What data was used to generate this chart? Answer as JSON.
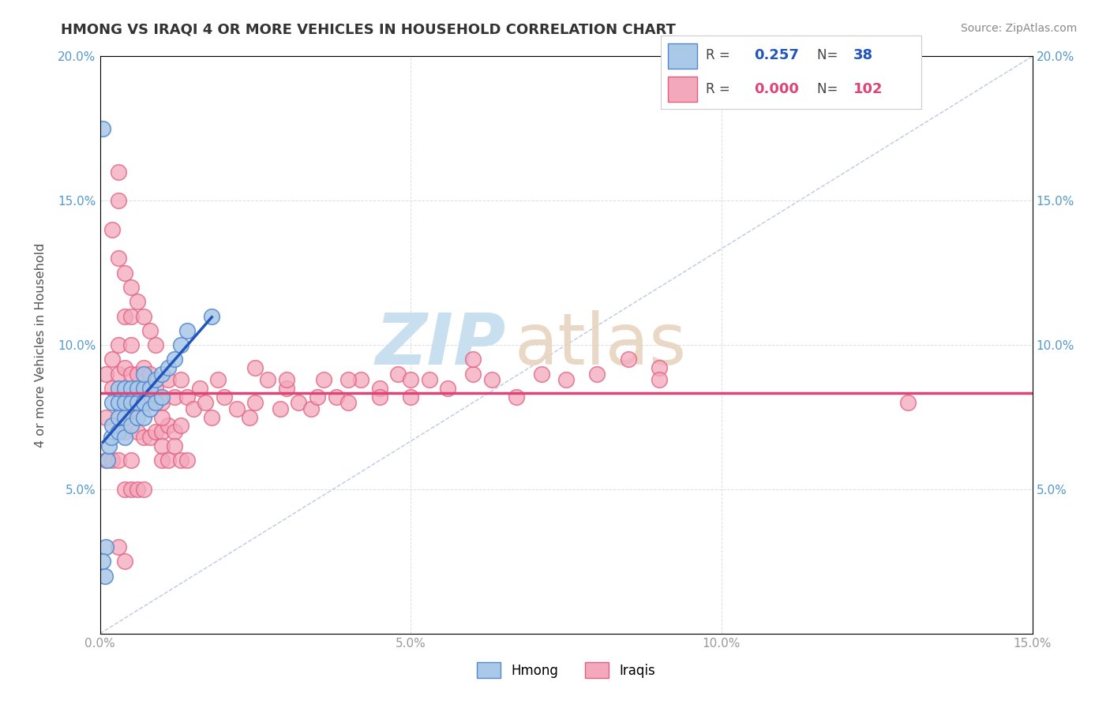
{
  "title": "HMONG VS IRAQI 4 OR MORE VEHICLES IN HOUSEHOLD CORRELATION CHART",
  "source_text": "Source: ZipAtlas.com",
  "ylabel": "4 or more Vehicles in Household",
  "xlim": [
    0.0,
    0.15
  ],
  "ylim": [
    0.0,
    0.2
  ],
  "xticks": [
    0.0,
    0.05,
    0.1,
    0.15
  ],
  "yticks": [
    0.0,
    0.05,
    0.1,
    0.15,
    0.2
  ],
  "xticklabels": [
    "0.0%",
    "5.0%",
    "10.0%",
    "15.0%"
  ],
  "yticklabels": [
    "",
    "5.0%",
    "10.0%",
    "15.0%",
    "20.0%"
  ],
  "hmong_R": 0.257,
  "hmong_N": 38,
  "iraqi_R": 0.0,
  "iraqi_N": 102,
  "hmong_color": "#aac8e8",
  "iraqi_color": "#f4a8bc",
  "hmong_edge_color": "#5588cc",
  "iraqi_edge_color": "#e06080",
  "trend_hmong_color": "#2255bb",
  "trend_iraqi_color": "#dd4477",
  "ref_line_color": "#aabbdd",
  "background_color": "#ffffff",
  "watermark_zip_color": "#c8dff0",
  "watermark_atlas_color": "#e8d4c0",
  "hmong_x": [
    0.0008,
    0.001,
    0.0012,
    0.0015,
    0.0018,
    0.002,
    0.002,
    0.003,
    0.003,
    0.003,
    0.003,
    0.004,
    0.004,
    0.004,
    0.004,
    0.005,
    0.005,
    0.005,
    0.006,
    0.006,
    0.006,
    0.007,
    0.007,
    0.007,
    0.007,
    0.008,
    0.008,
    0.009,
    0.009,
    0.01,
    0.01,
    0.011,
    0.012,
    0.013,
    0.014,
    0.018,
    0.0005,
    0.0005
  ],
  "hmong_y": [
    0.02,
    0.03,
    0.06,
    0.065,
    0.068,
    0.072,
    0.08,
    0.07,
    0.075,
    0.08,
    0.085,
    0.068,
    0.075,
    0.08,
    0.085,
    0.072,
    0.08,
    0.085,
    0.075,
    0.08,
    0.085,
    0.075,
    0.08,
    0.085,
    0.09,
    0.078,
    0.085,
    0.08,
    0.088,
    0.082,
    0.09,
    0.092,
    0.095,
    0.1,
    0.105,
    0.11,
    0.175,
    0.025
  ],
  "iraqi_x": [
    0.001,
    0.001,
    0.001,
    0.002,
    0.002,
    0.002,
    0.003,
    0.003,
    0.003,
    0.003,
    0.004,
    0.004,
    0.004,
    0.005,
    0.005,
    0.005,
    0.005,
    0.006,
    0.006,
    0.006,
    0.007,
    0.007,
    0.007,
    0.008,
    0.008,
    0.008,
    0.009,
    0.009,
    0.01,
    0.01,
    0.011,
    0.011,
    0.012,
    0.012,
    0.013,
    0.013,
    0.014,
    0.015,
    0.016,
    0.017,
    0.018,
    0.019,
    0.02,
    0.022,
    0.024,
    0.025,
    0.027,
    0.029,
    0.03,
    0.032,
    0.034,
    0.036,
    0.038,
    0.04,
    0.042,
    0.045,
    0.048,
    0.05,
    0.053,
    0.056,
    0.06,
    0.063,
    0.067,
    0.071,
    0.075,
    0.08,
    0.085,
    0.09,
    0.002,
    0.003,
    0.004,
    0.004,
    0.005,
    0.005,
    0.006,
    0.007,
    0.008,
    0.009,
    0.01,
    0.01,
    0.011,
    0.012,
    0.013,
    0.014,
    0.003,
    0.003,
    0.004,
    0.005,
    0.006,
    0.007,
    0.025,
    0.03,
    0.035,
    0.04,
    0.045,
    0.05,
    0.003,
    0.004,
    0.01,
    0.06,
    0.09,
    0.13
  ],
  "iraqi_y": [
    0.075,
    0.09,
    0.06,
    0.085,
    0.095,
    0.06,
    0.075,
    0.09,
    0.1,
    0.06,
    0.08,
    0.092,
    0.07,
    0.078,
    0.09,
    0.1,
    0.06,
    0.08,
    0.09,
    0.07,
    0.085,
    0.092,
    0.068,
    0.08,
    0.09,
    0.068,
    0.085,
    0.07,
    0.08,
    0.07,
    0.088,
    0.072,
    0.082,
    0.07,
    0.088,
    0.072,
    0.082,
    0.078,
    0.085,
    0.08,
    0.075,
    0.088,
    0.082,
    0.078,
    0.075,
    0.08,
    0.088,
    0.078,
    0.085,
    0.08,
    0.078,
    0.088,
    0.082,
    0.08,
    0.088,
    0.085,
    0.09,
    0.082,
    0.088,
    0.085,
    0.09,
    0.088,
    0.082,
    0.09,
    0.088,
    0.09,
    0.095,
    0.092,
    0.14,
    0.13,
    0.125,
    0.11,
    0.12,
    0.11,
    0.115,
    0.11,
    0.105,
    0.1,
    0.06,
    0.065,
    0.06,
    0.065,
    0.06,
    0.06,
    0.15,
    0.16,
    0.05,
    0.05,
    0.05,
    0.05,
    0.092,
    0.088,
    0.082,
    0.088,
    0.082,
    0.088,
    0.03,
    0.025,
    0.075,
    0.095,
    0.088,
    0.08
  ]
}
